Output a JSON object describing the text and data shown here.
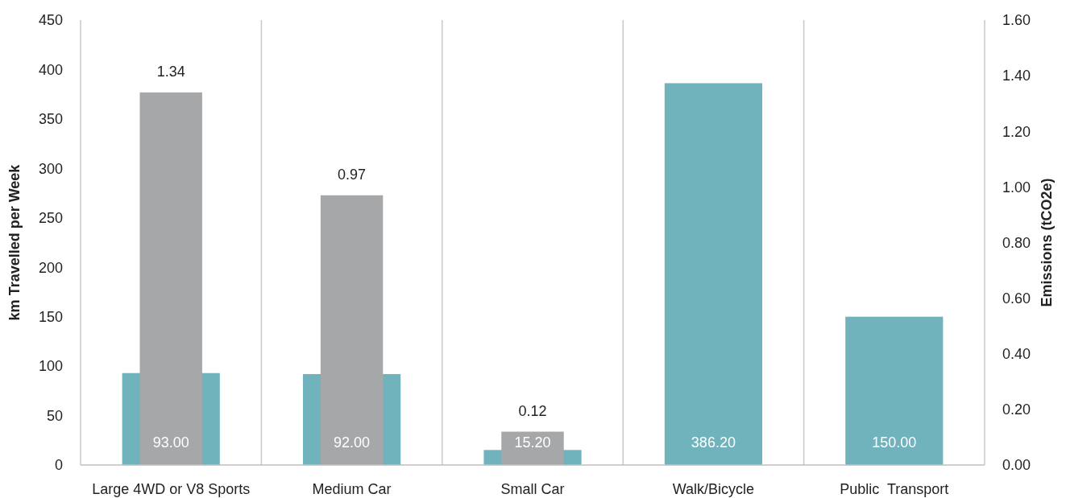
{
  "chart_data": {
    "type": "bar",
    "ylabel": "km Travelled per Week",
    "y2label": "Emissions (tCO2e)",
    "categories": [
      "Large 4WD or V8 Sports",
      "Medium Car",
      "Small Car",
      "Walk/Bicycle",
      "Public  Transport"
    ],
    "series": [
      {
        "color": "#70b3bc",
        "values": [
          93,
          92,
          15.2,
          386.2,
          150
        ],
        "value_labels": [
          "93.00",
          "92.00",
          "15.20",
          "386.20",
          "150.00"
        ]
      },
      {
        "color": "#a6a7a9",
        "axis": "y2",
        "values": [
          1.34,
          0.97,
          0.12,
          null,
          null
        ],
        "value_labels": [
          "1.34",
          "0.97",
          "0.12",
          null,
          null
        ]
      }
    ],
    "ylim": [
      0,
      450
    ],
    "yticks": [
      0,
      50,
      100,
      150,
      200,
      250,
      300,
      350,
      400,
      450
    ],
    "y2lim": [
      0,
      1.6
    ],
    "y2ticks": [
      {
        "value": 0,
        "label": "0.00"
      },
      {
        "value": 0.2,
        "label": "0.20"
      },
      {
        "value": 0.4,
        "label": "0.40"
      },
      {
        "value": 0.6,
        "label": "0.60"
      },
      {
        "value": 0.8,
        "label": "0.80"
      },
      {
        "value": 1,
        "label": "1.00"
      },
      {
        "value": 1.2,
        "label": "1.20"
      },
      {
        "value": 1.4,
        "label": "1.40"
      },
      {
        "value": 1.6,
        "label": "1.60"
      }
    ],
    "grid": "x"
  }
}
